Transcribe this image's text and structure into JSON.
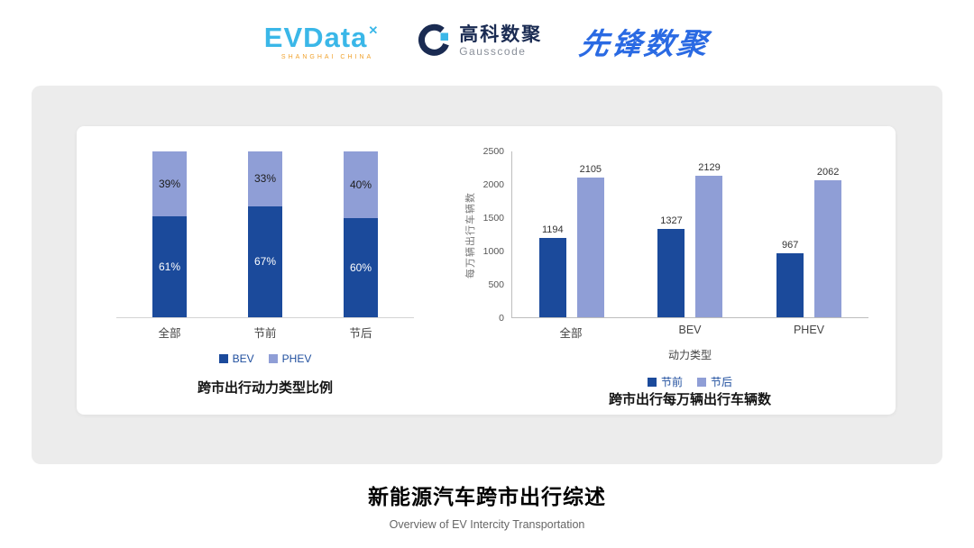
{
  "header": {
    "evdata": {
      "name": "EVData",
      "mark": "✕",
      "sub": "SHANGHAI CHINA"
    },
    "gausscode": {
      "cn": "高科数聚",
      "en": "Gausscode"
    },
    "pioneer": {
      "text": "先锋数聚"
    }
  },
  "icons": {
    "gausscode": "ring-g-icon",
    "evdata_mark": "x-star-icon"
  },
  "colors": {
    "series_dark": "#1b4a9b",
    "series_light": "#8f9ed6",
    "legend_text": "#1f4e9e",
    "evdata_blue": "#3ab7e8",
    "gausscode_navy": "#1a2b52",
    "pioneer_blue": "#2a6ae3",
    "panel_gray": "#ececec"
  },
  "chart_data": [
    {
      "type": "bar",
      "subtype": "stacked_percent",
      "title": "跨市出行动力类型比例",
      "categories": [
        "全部",
        "节前",
        "节后"
      ],
      "series": [
        {
          "name": "BEV",
          "color": "#1b4a9b",
          "values": [
            61,
            67,
            60
          ]
        },
        {
          "name": "PHEV",
          "color": "#8f9ed6",
          "values": [
            39,
            33,
            40
          ]
        }
      ],
      "value_suffix": "%",
      "legend_position": "bottom",
      "grid": false
    },
    {
      "type": "bar",
      "subtype": "grouped",
      "title": "跨市出行每万辆出行车辆数",
      "categories": [
        "全部",
        "BEV",
        "PHEV"
      ],
      "xlabel": "动力类型",
      "ylabel": "每万辆出行车辆数",
      "ylim": [
        0,
        2500
      ],
      "yticks": [
        0,
        500,
        1000,
        1500,
        2000,
        2500
      ],
      "series": [
        {
          "name": "节前",
          "color": "#1b4a9b",
          "values": [
            1194,
            1327,
            967
          ]
        },
        {
          "name": "节后",
          "color": "#8f9ed6",
          "values": [
            2105,
            2129,
            2062
          ]
        }
      ],
      "legend_position": "bottom",
      "grid": false
    }
  ],
  "footer": {
    "title": "新能源汽车跨市出行综述",
    "subtitle": "Overview of EV Intercity Transportation"
  }
}
